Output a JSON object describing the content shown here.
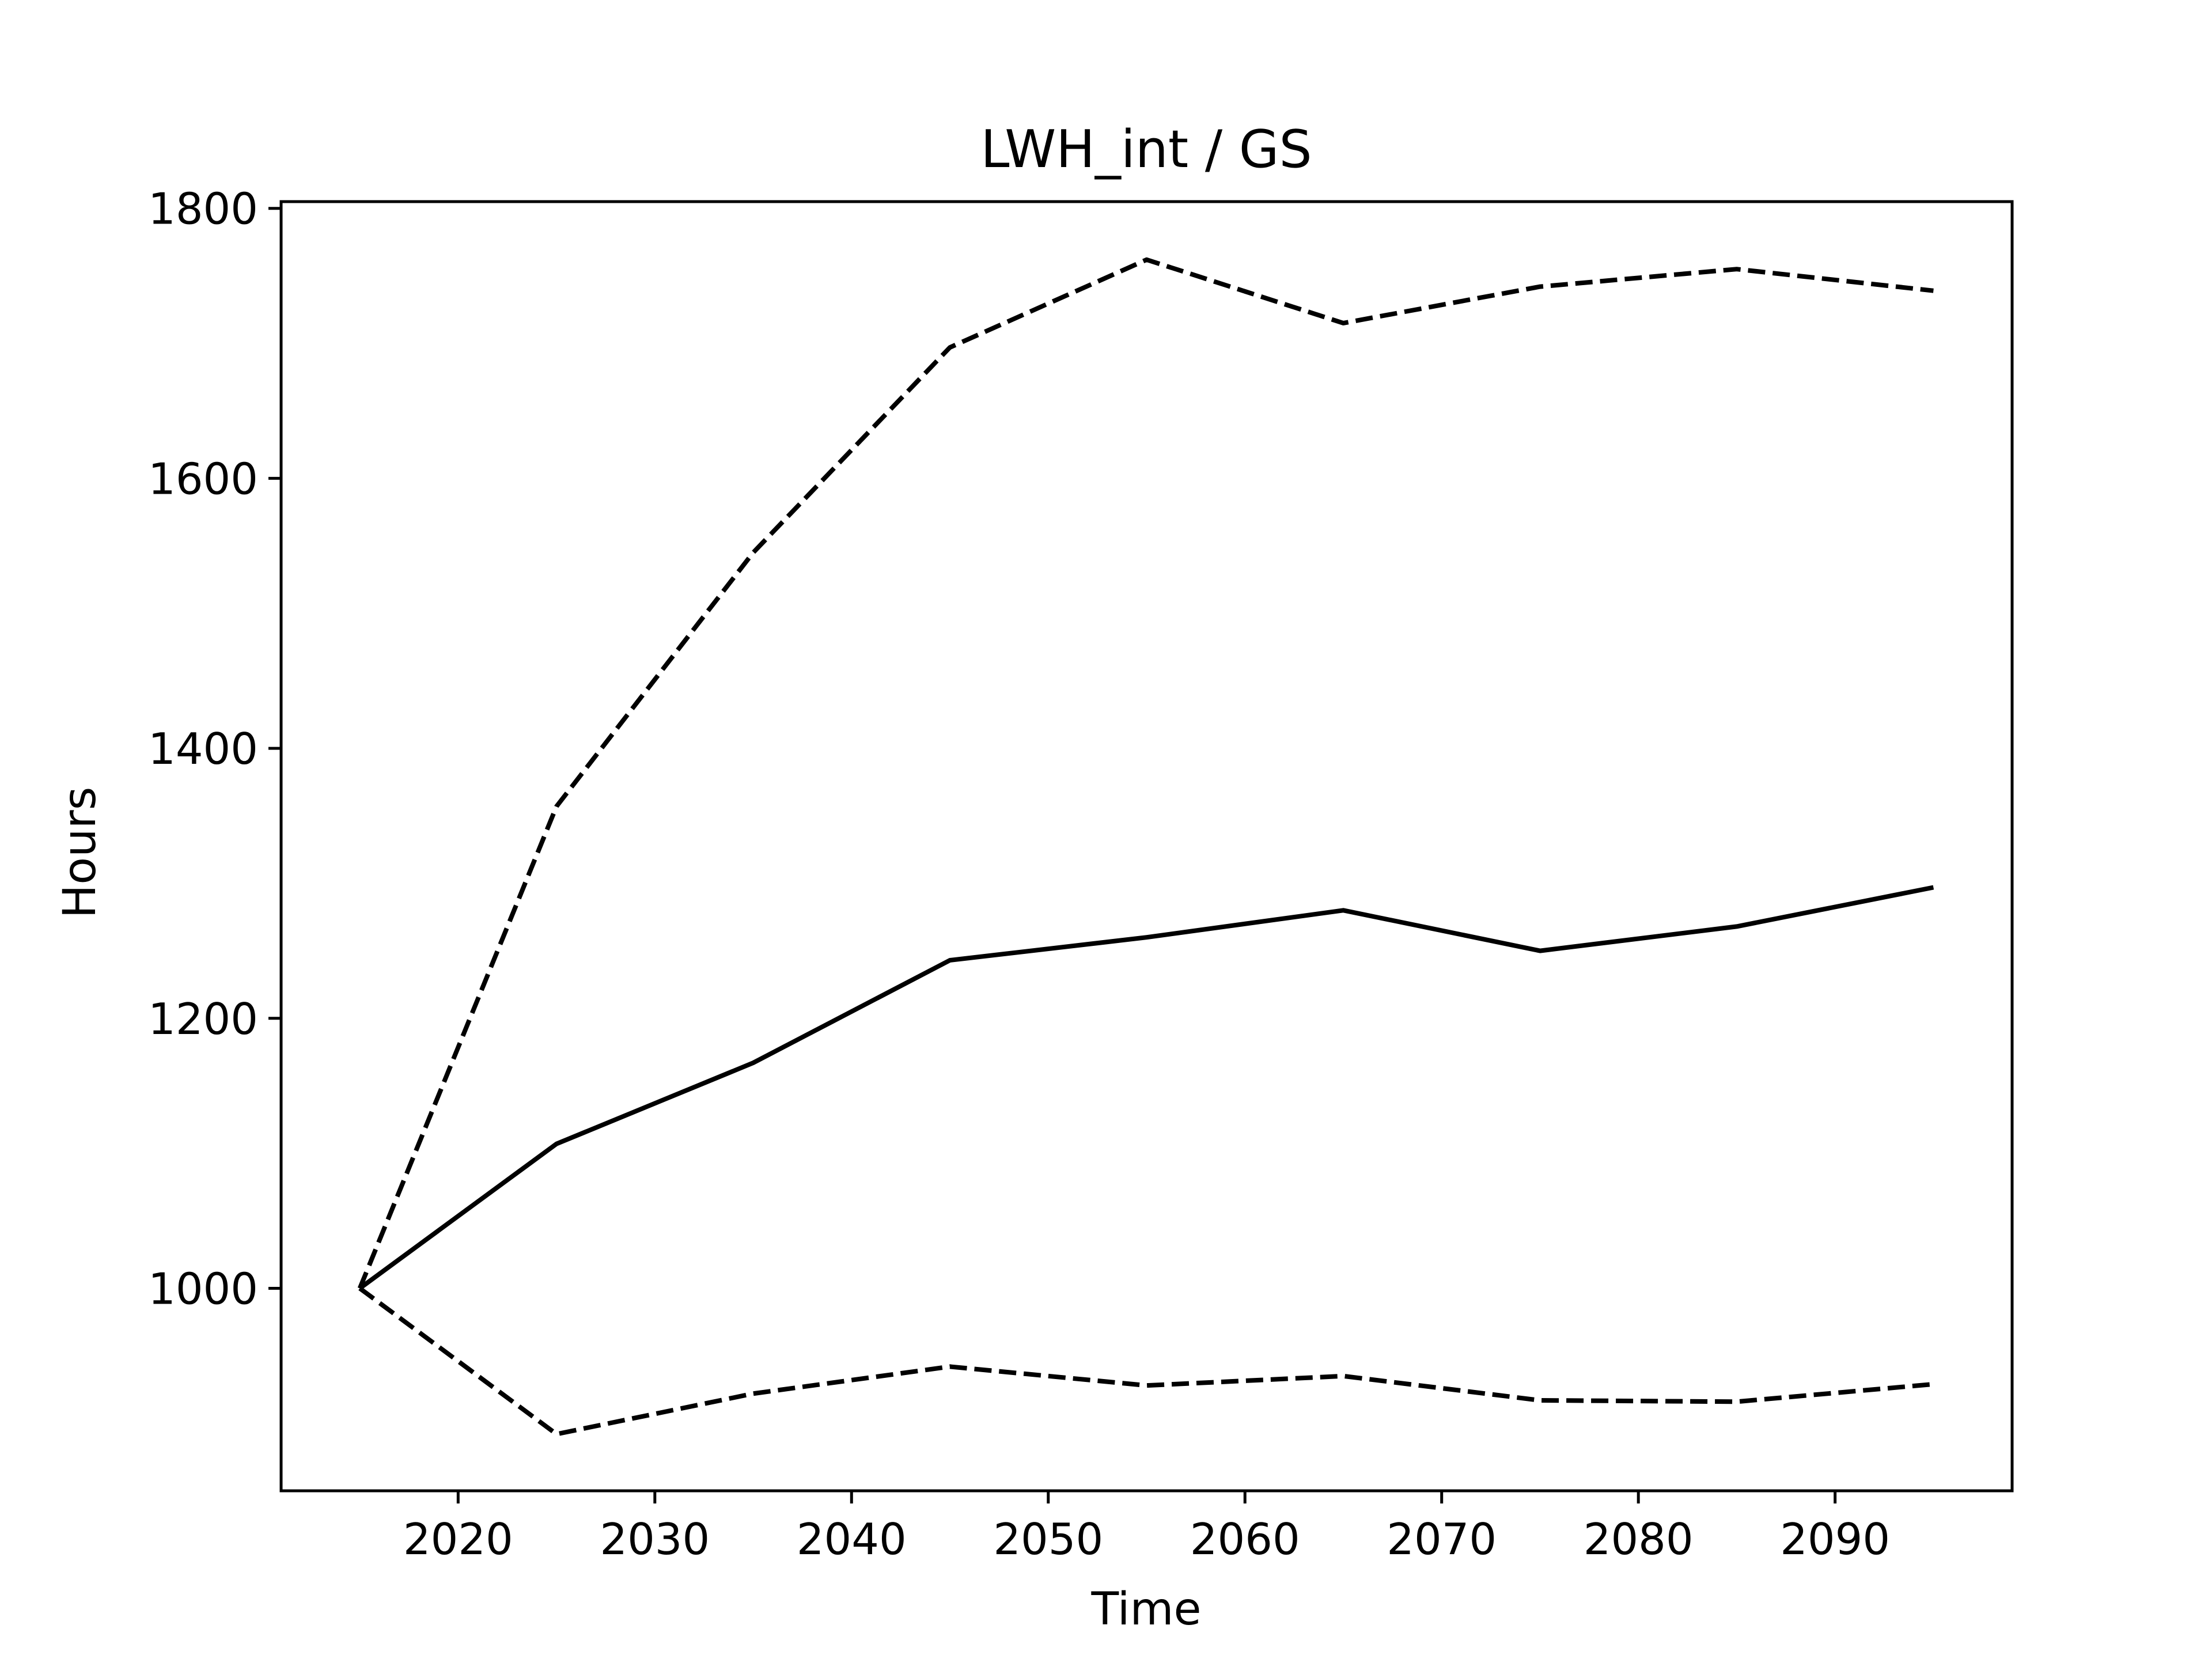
{
  "chart_data": {
    "type": "line",
    "title": "LWH_int / GS",
    "xlabel": "Time",
    "ylabel": "Hours",
    "xlim": [
      2011,
      2099
    ],
    "ylim": [
      850,
      1805
    ],
    "x_ticks": [
      2020,
      2030,
      2040,
      2050,
      2060,
      2070,
      2080,
      2090
    ],
    "y_ticks": [
      1000,
      1200,
      1400,
      1600,
      1800
    ],
    "grid": false,
    "legend": "none",
    "x": [
      2015,
      2025,
      2035,
      2045,
      2055,
      2065,
      2075,
      2085,
      2095
    ],
    "series": [
      {
        "style": "solid",
        "color": "#000000",
        "values": [
          1000,
          1107,
          1167,
          1243,
          1260,
          1280,
          1250,
          1268,
          1297
        ]
      },
      {
        "style": "dashed",
        "color": "#000000",
        "values": [
          1000,
          1357,
          1545,
          1697,
          1762,
          1715,
          1742,
          1755,
          1739
        ]
      },
      {
        "style": "dashed",
        "color": "#000000",
        "values": [
          1000,
          892,
          922,
          942,
          928,
          935,
          917,
          916,
          929
        ]
      }
    ]
  }
}
